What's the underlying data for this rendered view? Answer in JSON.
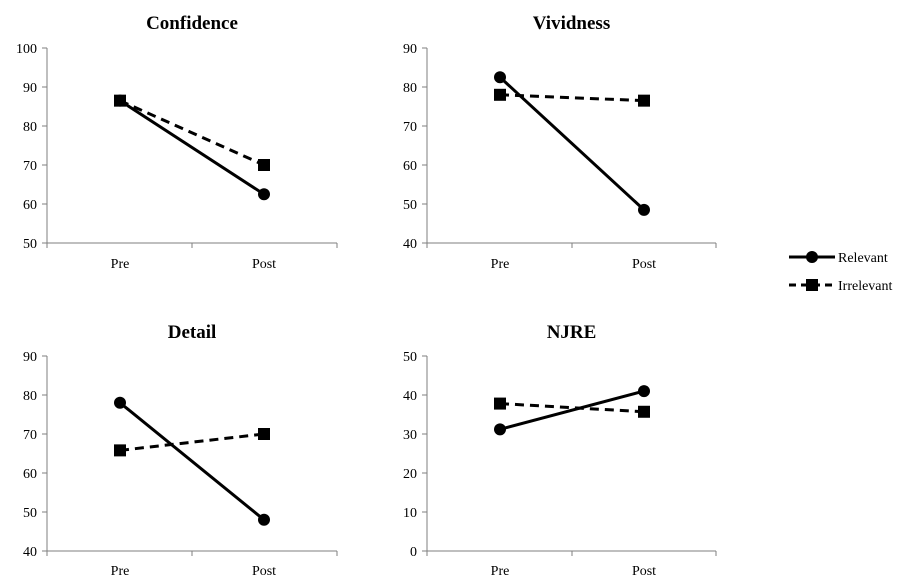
{
  "legend": {
    "items": [
      {
        "label": "Relevant",
        "style": "solid",
        "marker": "circle"
      },
      {
        "label": "Irrelevant",
        "style": "dashed",
        "marker": "square"
      }
    ]
  },
  "chart_data": [
    {
      "type": "line",
      "title": "Confidence",
      "categories": [
        "Pre",
        "Post"
      ],
      "ylim": [
        50,
        100
      ],
      "yticks": [
        50,
        60,
        70,
        80,
        90,
        100
      ],
      "grid": false,
      "series": [
        {
          "name": "Relevant",
          "values": [
            86.5,
            62.5
          ]
        },
        {
          "name": "Irrelevant",
          "values": [
            86.5,
            70
          ]
        }
      ]
    },
    {
      "type": "line",
      "title": "Vividness",
      "categories": [
        "Pre",
        "Post"
      ],
      "ylim": [
        40,
        90
      ],
      "yticks": [
        40,
        50,
        60,
        70,
        80,
        90
      ],
      "grid": false,
      "series": [
        {
          "name": "Relevant",
          "values": [
            82.5,
            48.5
          ]
        },
        {
          "name": "Irrelevant",
          "values": [
            78,
            76.5
          ]
        }
      ]
    },
    {
      "type": "line",
      "title": "Detail",
      "categories": [
        "Pre",
        "Post"
      ],
      "ylim": [
        40,
        90
      ],
      "yticks": [
        40,
        50,
        60,
        70,
        80,
        90
      ],
      "grid": false,
      "series": [
        {
          "name": "Relevant",
          "values": [
            78,
            48
          ]
        },
        {
          "name": "Irrelevant",
          "values": [
            65.8,
            70
          ]
        }
      ]
    },
    {
      "type": "line",
      "title": "NJRE",
      "categories": [
        "Pre",
        "Post"
      ],
      "ylim": [
        0,
        50
      ],
      "yticks": [
        0,
        10,
        20,
        30,
        40,
        50
      ],
      "grid": false,
      "series": [
        {
          "name": "Relevant",
          "values": [
            31.2,
            41
          ]
        },
        {
          "name": "Irrelevant",
          "values": [
            37.8,
            35.7
          ]
        }
      ]
    }
  ]
}
